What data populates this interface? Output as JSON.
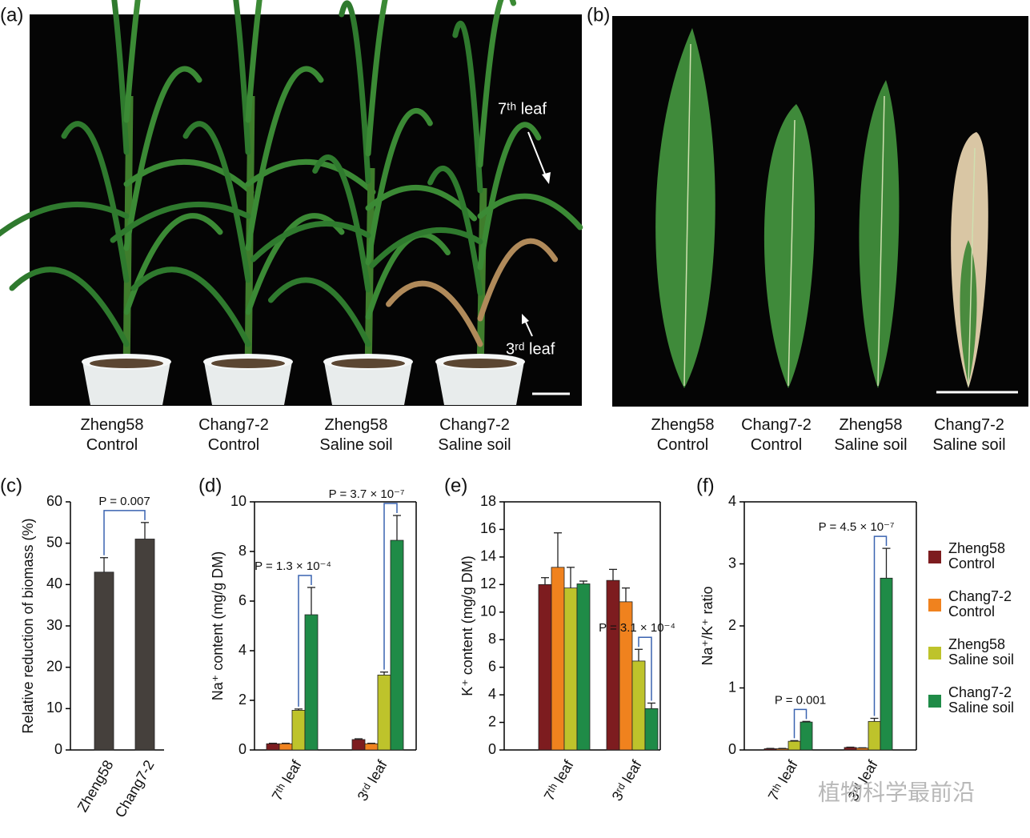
{
  "photos": [
    {
      "panel": "(a)",
      "captions": [
        "Zheng58 Control",
        "Chang7-2 Control",
        "Zheng58 Saline soil",
        "Chang7-2 Saline soil"
      ],
      "annotations": [
        "7ᵗʰ leaf",
        "3ʳᵈ leaf"
      ]
    },
    {
      "panel": "(b)",
      "captions": [
        "Zheng58 Control",
        "Chang7-2 Control",
        "Zheng58 Saline soil",
        "Chang7-2 Saline soil"
      ]
    }
  ],
  "chart_data": [
    {
      "panel": "(c)",
      "type": "bar",
      "categories": [
        "Zheng58",
        "Chang7-2"
      ],
      "values": [
        43,
        51
      ],
      "errors": [
        3.5,
        4
      ],
      "color": "#45403c",
      "ylabel": "Relative reduction of biomass (%)",
      "ylim": [
        0,
        60
      ],
      "yticks": [
        0,
        10,
        20,
        30,
        40,
        50,
        60
      ],
      "annotations": [
        "P = 0.007"
      ]
    },
    {
      "panel": "(d)",
      "type": "bar",
      "categories": [
        "7ᵗʰ leaf",
        "3ʳᵈ leaf"
      ],
      "series": [
        {
          "color": "#7d1c1f",
          "values": [
            0.25,
            0.42
          ],
          "errors": [
            0.02,
            0.03
          ]
        },
        {
          "color": "#f0821e",
          "values": [
            0.25,
            0.25
          ],
          "errors": [
            0.02,
            0.02
          ]
        },
        {
          "color": "#bec32b",
          "values": [
            1.6,
            3.02
          ],
          "errors": [
            0.05,
            0.12
          ]
        },
        {
          "color": "#1f8b47",
          "values": [
            5.45,
            8.45
          ],
          "errors": [
            1.1,
            1.0
          ]
        }
      ],
      "ylabel": "Na⁺ content (mg/g DM)",
      "ylim": [
        0,
        10
      ],
      "yticks": [
        0,
        2,
        4,
        6,
        8,
        10
      ],
      "annotations": [
        "P = 1.3 × 10⁻⁴",
        "P = 3.7 × 10⁻⁷"
      ]
    },
    {
      "panel": "(e)",
      "type": "bar",
      "categories": [
        "7ᵗʰ leaf",
        "3ʳᵈ leaf"
      ],
      "series": [
        {
          "color": "#7d1c1f",
          "values": [
            12.0,
            12.3
          ],
          "errors": [
            0.5,
            0.8
          ]
        },
        {
          "color": "#f0821e",
          "values": [
            13.25,
            10.75
          ],
          "errors": [
            2.5,
            1.0
          ]
        },
        {
          "color": "#bec32b",
          "values": [
            11.75,
            6.45
          ],
          "errors": [
            1.5,
            0.85
          ]
        },
        {
          "color": "#1f8b47",
          "values": [
            12.05,
            3.0
          ],
          "errors": [
            0.2,
            0.4
          ]
        }
      ],
      "ylabel": "K⁺ content (mg/g DM)",
      "ylim": [
        0,
        18
      ],
      "yticks": [
        0,
        2,
        4,
        6,
        8,
        10,
        12,
        14,
        16,
        18
      ],
      "annotations": [
        "P = 3.1 × 10⁻⁴"
      ]
    },
    {
      "panel": "(f)",
      "type": "bar",
      "categories": [
        "7ᵗʰ leaf",
        "3ʳᵈ leaf"
      ],
      "series": [
        {
          "name": "Zheng58 Control",
          "color": "#7d1c1f",
          "values": [
            0.02,
            0.04
          ],
          "errors": [
            0.005,
            0.005
          ]
        },
        {
          "name": "Chang7-2 Control",
          "color": "#f0821e",
          "values": [
            0.02,
            0.03
          ],
          "errors": [
            0.005,
            0.005
          ]
        },
        {
          "name": "Zheng58 Saline soil",
          "color": "#bec32b",
          "values": [
            0.14,
            0.46
          ],
          "errors": [
            0.01,
            0.05
          ]
        },
        {
          "name": "Chang7-2 Saline soil",
          "color": "#1f8b47",
          "values": [
            0.45,
            2.77
          ],
          "errors": [
            0.01,
            0.48
          ]
        }
      ],
      "ylabel": "Na⁺/K⁺ ratio",
      "ylim": [
        0,
        4
      ],
      "yticks": [
        0,
        1,
        2,
        3,
        4
      ],
      "annotations": [
        "P = 0.001",
        "P = 4.5 × 10⁻⁷"
      ],
      "legend": "right"
    }
  ],
  "watermark": "植物科学最前沿"
}
